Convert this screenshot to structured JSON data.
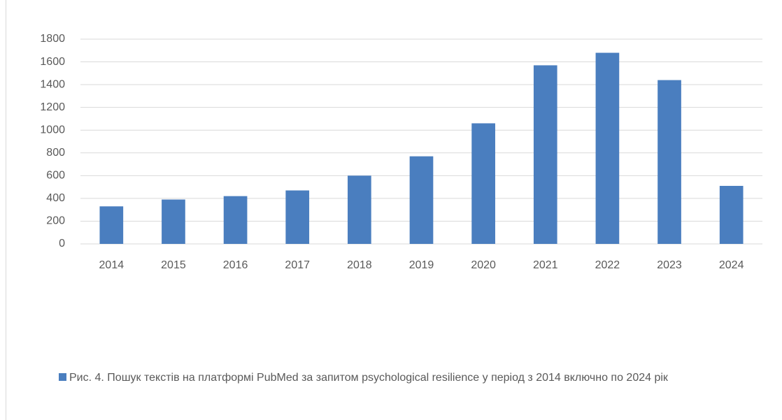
{
  "chart_data": {
    "type": "bar",
    "categories": [
      "2014",
      "2015",
      "2016",
      "2017",
      "2018",
      "2019",
      "2020",
      "2021",
      "2022",
      "2023",
      "2024"
    ],
    "series": [
      {
        "name": "Рис. 4. Пошук текстів на платформі PubMed за запитом psychological resilience у період з 2014 включно по  2024 рік",
        "color": "#4a7ebf",
        "values": [
          330,
          390,
          420,
          470,
          600,
          770,
          1060,
          1570,
          1680,
          1440,
          510
        ]
      }
    ],
    "ylim": [
      0,
      1800
    ],
    "yticks": [
      0,
      200,
      400,
      600,
      800,
      1000,
      1200,
      1400,
      1600,
      1800
    ],
    "grid": true,
    "legend": "bottom"
  }
}
